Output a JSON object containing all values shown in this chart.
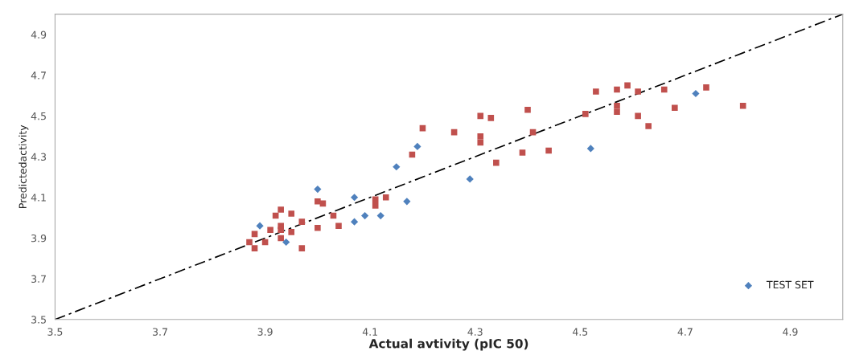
{
  "chart_data": {
    "type": "scatter",
    "xlabel": "Actual avtivity (pIC 50)",
    "ylabel": "Predictedactivity",
    "xlim": [
      3.5,
      5.0
    ],
    "ylim": [
      3.5,
      5.0
    ],
    "xticks": [
      3.5,
      3.7,
      3.9,
      4.1,
      4.3,
      4.5,
      4.7,
      4.9
    ],
    "yticks": [
      3.5,
      3.7,
      3.9,
      4.1,
      4.3,
      4.5,
      4.7,
      4.9
    ],
    "grid": false,
    "legend": "bottom right",
    "series": [
      {
        "marker": "square",
        "color": "#c0504d",
        "x": [
          3.87,
          3.88,
          3.88,
          3.9,
          3.91,
          3.92,
          3.93,
          3.93,
          3.93,
          3.93,
          3.95,
          3.95,
          3.97,
          3.97,
          4.0,
          4.01,
          4.0,
          4.03,
          4.04,
          4.11,
          4.11,
          4.13,
          4.18,
          4.2,
          4.26,
          4.31,
          4.31,
          4.31,
          4.33,
          4.34,
          4.39,
          4.4,
          4.41,
          4.44,
          4.51,
          4.53,
          4.57,
          4.57,
          4.57,
          4.59,
          4.61,
          4.61,
          4.63,
          4.66,
          4.68,
          4.74,
          4.81
        ],
        "values": [
          3.88,
          3.92,
          3.85,
          3.88,
          3.94,
          4.01,
          4.04,
          3.96,
          3.94,
          3.9,
          4.02,
          3.93,
          3.98,
          3.85,
          4.08,
          4.07,
          3.95,
          4.01,
          3.96,
          4.09,
          4.06,
          4.1,
          4.31,
          4.44,
          4.42,
          4.5,
          4.4,
          4.37,
          4.49,
          4.27,
          4.32,
          4.53,
          4.42,
          4.33,
          4.51,
          4.62,
          4.63,
          4.55,
          4.52,
          4.65,
          4.62,
          4.5,
          4.45,
          4.63,
          4.54,
          4.64,
          4.55
        ]
      },
      {
        "marker": "diamond",
        "name": "TEST SET",
        "color": "#4f81bd",
        "x": [
          3.89,
          4.0,
          3.94,
          4.07,
          4.07,
          4.09,
          4.12,
          4.15,
          4.17,
          4.19,
          4.29,
          4.52,
          4.72
        ],
        "values": [
          3.96,
          4.14,
          3.88,
          4.1,
          3.98,
          4.01,
          4.01,
          4.25,
          4.08,
          4.35,
          4.19,
          4.34,
          4.61
        ]
      },
      {
        "type": "line",
        "line_style": "dashed",
        "color": "#000000",
        "x": [
          3.5,
          5.0
        ],
        "values": [
          3.5,
          5.0
        ]
      }
    ]
  }
}
